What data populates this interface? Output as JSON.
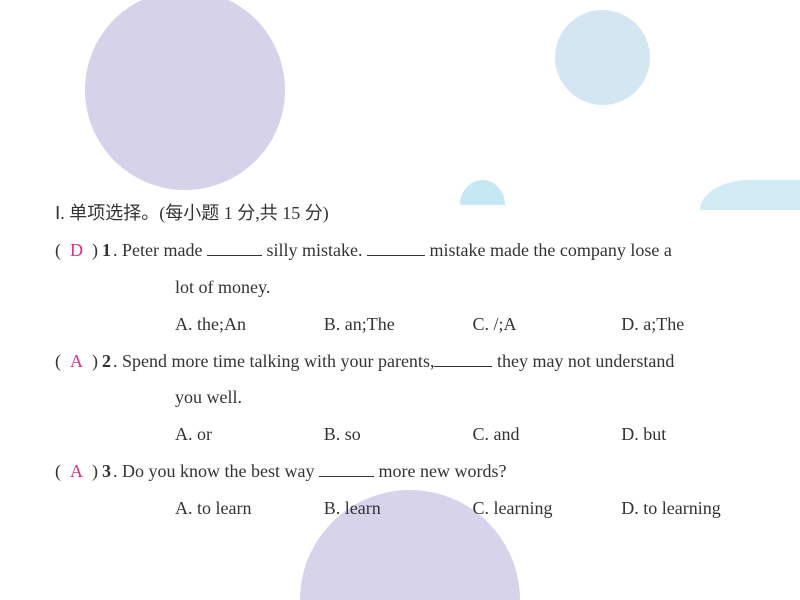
{
  "colors": {
    "answer": "#d63384",
    "text": "#333333",
    "bg": "#ffffff",
    "circle_purple": "#d5d2ea",
    "circle_blue1": "#d3e6f2",
    "circle_blue2": "#c6e8f0",
    "circle_blue3": "#d0ebf3"
  },
  "section_title": "Ⅰ. 单项选择。(每小题 1 分,共 15 分)",
  "questions": [
    {
      "answer": "D",
      "num": "1",
      "pre": ". Peter made ",
      "mid": " silly mistake. ",
      "post": " mistake made the company lose a",
      "line2": "lot of money.",
      "choices": [
        "A. the;An",
        "B. an;The",
        "C. /;A",
        "D. a;The"
      ]
    },
    {
      "answer": "A",
      "num": "2",
      "pre": ". Spend more time talking with your parents,",
      "post": " they may not understand",
      "line2": "you well.",
      "choices": [
        "A. or",
        "B. so",
        "C. and",
        "D. but"
      ]
    },
    {
      "answer": "A",
      "num": "3",
      "pre": ". Do you know the best way ",
      "post": " more new words?",
      "choices": [
        "A. to learn",
        "B. learn",
        "C. learning",
        "D. to learning"
      ]
    }
  ]
}
